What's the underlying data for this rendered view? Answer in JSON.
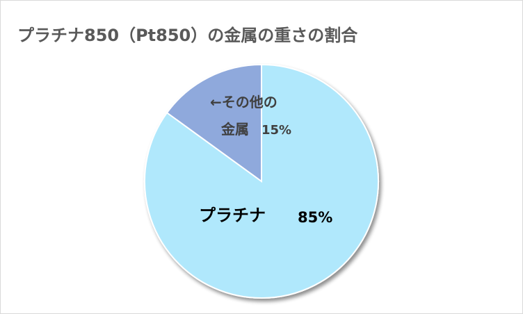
{
  "chart_data": {
    "type": "pie",
    "title": "プラチナ850（Pt850）の金属の重さの割合",
    "slices": [
      {
        "label": "プラチナ",
        "value": 85,
        "value_label": "85%",
        "color": "#b0e8fc"
      },
      {
        "label_lines": [
          "←その他の",
          "金属"
        ],
        "value": 15,
        "value_label": "15%",
        "color": "#8fa9dc"
      }
    ],
    "start_angle_deg": 0,
    "direction": "clockwise",
    "stroke_color": "#ffffff",
    "shadow": true,
    "legend": "none"
  }
}
